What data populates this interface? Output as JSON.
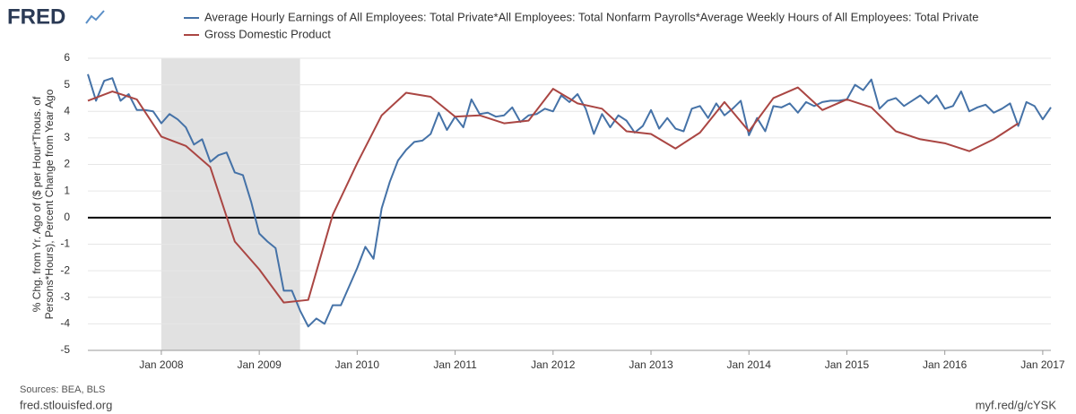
{
  "logo": "FRED",
  "chart_data": {
    "type": "line",
    "ylabel_lines": [
      "% Chg. from Yr. Ago of ($ per Hour*Thous. of",
      "Persons*Hours), Percent Change from Year Ago"
    ],
    "xlim": [
      "2007-04",
      "2017-02"
    ],
    "xticks": [
      {
        "value": "2008-01",
        "label": "Jan 2008"
      },
      {
        "value": "2009-01",
        "label": "Jan 2009"
      },
      {
        "value": "2010-01",
        "label": "Jan 2010"
      },
      {
        "value": "2011-01",
        "label": "Jan 2011"
      },
      {
        "value": "2012-01",
        "label": "Jan 2012"
      },
      {
        "value": "2013-01",
        "label": "Jan 2013"
      },
      {
        "value": "2014-01",
        "label": "Jan 2014"
      },
      {
        "value": "2015-01",
        "label": "Jan 2015"
      },
      {
        "value": "2016-01",
        "label": "Jan 2016"
      },
      {
        "value": "2017-01",
        "label": "Jan 2017"
      }
    ],
    "ylim": [
      -5,
      6
    ],
    "yticks": [
      -5,
      -4,
      -3,
      -2,
      -1,
      0,
      1,
      2,
      3,
      4,
      5,
      6
    ],
    "grid": true,
    "zero_line": true,
    "recession": [
      "2008-01",
      "2009-06"
    ],
    "series": [
      {
        "name": "Average Hourly Earnings of All Employees: Total Private*All Employees: Total Nonfarm Payrolls*Average Weekly Hours of All Employees: Total Private",
        "color": "#4572a7",
        "x": [
          "2007-04",
          "2007-05",
          "2007-06",
          "2007-07",
          "2007-08",
          "2007-09",
          "2007-10",
          "2007-11",
          "2007-12",
          "2008-01",
          "2008-02",
          "2008-03",
          "2008-04",
          "2008-05",
          "2008-06",
          "2008-07",
          "2008-08",
          "2008-09",
          "2008-10",
          "2008-11",
          "2008-12",
          "2009-01",
          "2009-02",
          "2009-03",
          "2009-04",
          "2009-05",
          "2009-06",
          "2009-07",
          "2009-08",
          "2009-09",
          "2009-10",
          "2009-11",
          "2009-12",
          "2010-01",
          "2010-02",
          "2010-03",
          "2010-04",
          "2010-05",
          "2010-06",
          "2010-07",
          "2010-08",
          "2010-09",
          "2010-10",
          "2010-11",
          "2010-12",
          "2011-01",
          "2011-02",
          "2011-03",
          "2011-04",
          "2011-05",
          "2011-06",
          "2011-07",
          "2011-08",
          "2011-09",
          "2011-10",
          "2011-11",
          "2011-12",
          "2012-01",
          "2012-02",
          "2012-03",
          "2012-04",
          "2012-05",
          "2012-06",
          "2012-07",
          "2012-08",
          "2012-09",
          "2012-10",
          "2012-11",
          "2012-12",
          "2013-01",
          "2013-02",
          "2013-03",
          "2013-04",
          "2013-05",
          "2013-06",
          "2013-07",
          "2013-08",
          "2013-09",
          "2013-10",
          "2013-11",
          "2013-12",
          "2014-01",
          "2014-02",
          "2014-03",
          "2014-04",
          "2014-05",
          "2014-06",
          "2014-07",
          "2014-08",
          "2014-09",
          "2014-10",
          "2014-11",
          "2014-12",
          "2015-01",
          "2015-02",
          "2015-03",
          "2015-04",
          "2015-05",
          "2015-06",
          "2015-07",
          "2015-08",
          "2015-09",
          "2015-10",
          "2015-11",
          "2015-12",
          "2016-01",
          "2016-02",
          "2016-03",
          "2016-04",
          "2016-05",
          "2016-06",
          "2016-07",
          "2016-08",
          "2016-09",
          "2016-10",
          "2016-11",
          "2016-12",
          "2017-01",
          "2017-02"
        ],
        "values": [
          5.4,
          4.4,
          5.15,
          5.25,
          4.4,
          4.65,
          4.05,
          4.05,
          4.0,
          3.55,
          3.9,
          3.7,
          3.4,
          2.75,
          2.95,
          2.1,
          2.35,
          2.45,
          1.7,
          1.6,
          0.6,
          -0.6,
          -0.9,
          -1.15,
          -2.75,
          -2.75,
          -3.5,
          -4.1,
          -3.8,
          -4.0,
          -3.3,
          -3.3,
          -2.6,
          -1.9,
          -1.1,
          -1.55,
          0.35,
          1.35,
          2.15,
          2.55,
          2.85,
          2.9,
          3.15,
          3.95,
          3.3,
          3.8,
          3.4,
          4.45,
          3.9,
          3.95,
          3.8,
          3.85,
          4.15,
          3.6,
          3.85,
          3.9,
          4.1,
          4.0,
          4.6,
          4.35,
          4.65,
          4.1,
          3.15,
          3.9,
          3.4,
          3.85,
          3.65,
          3.2,
          3.45,
          4.05,
          3.35,
          3.75,
          3.35,
          3.25,
          4.1,
          4.2,
          3.75,
          4.3,
          3.85,
          4.1,
          4.4,
          3.1,
          3.75,
          3.25,
          4.2,
          4.15,
          4.3,
          3.95,
          4.35,
          4.2,
          4.35,
          4.4,
          4.4,
          4.45,
          5.0,
          4.8,
          5.2,
          4.1,
          4.4,
          4.5,
          4.2,
          4.4,
          4.6,
          4.3,
          4.6,
          4.1,
          4.2,
          4.75,
          4.0,
          4.15,
          4.25,
          3.95,
          4.1,
          4.3,
          3.45,
          4.35,
          4.2,
          3.7,
          4.15
        ]
      },
      {
        "name": "Gross Domestic Product",
        "color": "#aa4643",
        "x": [
          "2007-04",
          "2007-07",
          "2007-10",
          "2008-01",
          "2008-04",
          "2008-07",
          "2008-10",
          "2009-01",
          "2009-04",
          "2009-07",
          "2009-10",
          "2010-01",
          "2010-04",
          "2010-07",
          "2010-10",
          "2011-01",
          "2011-04",
          "2011-07",
          "2011-10",
          "2012-01",
          "2012-04",
          "2012-07",
          "2012-10",
          "2013-01",
          "2013-04",
          "2013-07",
          "2013-10",
          "2014-01",
          "2014-04",
          "2014-07",
          "2014-10",
          "2015-01",
          "2015-04",
          "2015-07",
          "2015-10",
          "2016-01",
          "2016-04",
          "2016-07",
          "2016-10"
        ],
        "values": [
          4.4,
          4.75,
          4.45,
          3.05,
          2.7,
          1.9,
          -0.9,
          -1.95,
          -3.2,
          -3.1,
          0.1,
          2.05,
          3.85,
          4.7,
          4.55,
          3.8,
          3.85,
          3.55,
          3.65,
          4.85,
          4.3,
          4.1,
          3.25,
          3.15,
          2.6,
          3.2,
          4.35,
          3.25,
          4.5,
          4.9,
          4.05,
          4.45,
          4.15,
          3.25,
          2.95,
          2.8,
          2.5,
          2.95,
          3.55
        ]
      }
    ]
  },
  "footer": {
    "sources": "Sources: BEA, BLS",
    "site": "fred.stlouisfed.org",
    "short_url": "myf.red/g/cYSK"
  }
}
